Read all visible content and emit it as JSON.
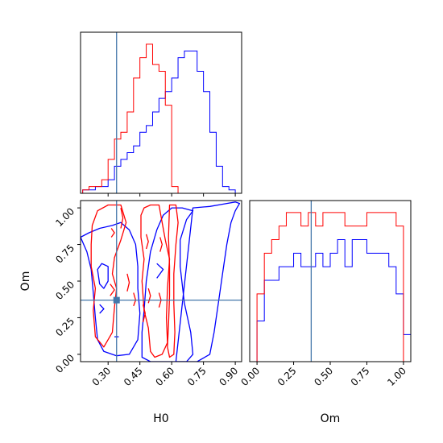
{
  "chart_data": {
    "type": "corner",
    "colors": {
      "series_a": "#ff0000",
      "series_b": "#0000ff",
      "truth": "#4477aa",
      "axes": "#000000"
    },
    "truth": {
      "H0": 0.34,
      "Om": 0.37
    },
    "x_axis_label": "H0",
    "y_axis_label": "Om",
    "om_axis_label": "Om",
    "h0_ticks": [
      {
        "v": 0.3,
        "label": "0.30"
      },
      {
        "v": 0.45,
        "label": "0.45"
      },
      {
        "v": 0.6,
        "label": "0.60"
      },
      {
        "v": 0.75,
        "label": "0.75"
      },
      {
        "v": 0.9,
        "label": "0.90"
      }
    ],
    "om_ticks": [
      {
        "v": 0.0,
        "label": "0.00"
      },
      {
        "v": 0.25,
        "label": "0.25"
      },
      {
        "v": 0.5,
        "label": "0.50"
      },
      {
        "v": 0.75,
        "label": "0.75"
      },
      {
        "v": 1.0,
        "label": "1.00"
      }
    ],
    "h0_range": [
      0.17,
      0.93
    ],
    "om_range": [
      -0.05,
      1.05
    ],
    "h0_histogram": {
      "bin_start": 0.18,
      "bin_width": 0.03,
      "red": [
        0.5,
        1,
        1,
        2,
        5,
        8,
        9,
        12,
        17,
        20,
        22,
        19,
        18,
        13,
        1,
        0,
        0,
        0,
        0,
        0,
        0,
        0,
        0,
        0,
        0
      ],
      "blue": [
        0.5,
        0.5,
        1,
        1,
        2,
        4,
        5,
        6,
        7,
        9,
        10,
        12,
        14,
        15,
        17,
        20,
        21,
        21,
        18,
        15,
        9,
        4,
        1,
        0.5,
        0
      ]
    },
    "om_histogram": {
      "bin_start": -0.05,
      "bin_width": 0.05,
      "red": [
        0,
        5,
        8,
        9,
        10,
        11,
        11,
        10,
        11,
        10,
        11,
        11,
        11,
        10,
        10,
        10,
        11,
        11,
        11,
        11,
        10,
        0
      ],
      "blue": [
        0,
        3,
        6,
        6,
        7,
        7,
        8,
        7,
        7,
        8,
        7,
        8,
        9,
        7,
        9,
        9,
        8,
        8,
        8,
        7,
        5,
        2
      ]
    },
    "contours": {
      "red": [
        [
          [
            0.225,
            0.88
          ],
          [
            0.25,
            0.98
          ],
          [
            0.3,
            1.02
          ],
          [
            0.36,
            1.02
          ],
          [
            0.385,
            0.9
          ],
          [
            0.36,
            0.78
          ],
          [
            0.33,
            0.66
          ],
          [
            0.32,
            0.55
          ],
          [
            0.34,
            0.45
          ],
          [
            0.33,
            0.32
          ],
          [
            0.32,
            0.15
          ],
          [
            0.28,
            0.05
          ],
          [
            0.24,
            0.12
          ],
          [
            0.23,
            0.3
          ],
          [
            0.24,
            0.45
          ],
          [
            0.22,
            0.6
          ],
          [
            0.22,
            0.75
          ]
        ],
        [
          [
            0.315,
            0.86
          ],
          [
            0.33,
            0.83
          ],
          [
            0.315,
            0.8
          ]
        ],
        [
          [
            0.31,
            0.48
          ],
          [
            0.33,
            0.44
          ],
          [
            0.31,
            0.4
          ]
        ],
        [
          [
            0.455,
            0.95
          ],
          [
            0.47,
            1.0
          ],
          [
            0.5,
            1.02
          ],
          [
            0.54,
            1.02
          ],
          [
            0.555,
            0.9
          ],
          [
            0.57,
            0.78
          ],
          [
            0.59,
            0.65
          ],
          [
            0.58,
            0.45
          ],
          [
            0.575,
            0.25
          ],
          [
            0.58,
            0.08
          ],
          [
            0.555,
            0.0
          ],
          [
            0.52,
            -0.02
          ],
          [
            0.5,
            0.02
          ],
          [
            0.49,
            0.18
          ],
          [
            0.47,
            0.3
          ],
          [
            0.46,
            0.5
          ],
          [
            0.47,
            0.65
          ],
          [
            0.455,
            0.8
          ]
        ],
        [
          [
            0.59,
            1.02
          ],
          [
            0.62,
            1.02
          ],
          [
            0.63,
            0.9
          ],
          [
            0.62,
            0.75
          ],
          [
            0.61,
            0.55
          ],
          [
            0.61,
            0.35
          ],
          [
            0.615,
            0.15
          ],
          [
            0.61,
            0.0
          ],
          [
            0.59,
            -0.02
          ],
          [
            0.58,
            0.05
          ],
          [
            0.585,
            0.2
          ],
          [
            0.59,
            0.4
          ],
          [
            0.59,
            0.6
          ],
          [
            0.585,
            0.8
          ]
        ],
        [
          [
            0.39,
            0.55
          ],
          [
            0.4,
            0.49
          ],
          [
            0.39,
            0.43
          ]
        ],
        [
          [
            0.42,
            0.42
          ],
          [
            0.43,
            0.37
          ],
          [
            0.42,
            0.33
          ]
        ],
        [
          [
            0.465,
            0.34
          ],
          [
            0.475,
            0.28
          ],
          [
            0.465,
            0.22
          ]
        ],
        [
          [
            0.49,
            0.45
          ],
          [
            0.5,
            0.4
          ],
          [
            0.49,
            0.35
          ]
        ],
        [
          [
            0.54,
            0.42
          ],
          [
            0.55,
            0.37
          ],
          [
            0.54,
            0.32
          ]
        ],
        [
          [
            0.48,
            0.82
          ],
          [
            0.49,
            0.77
          ],
          [
            0.48,
            0.72
          ]
        ],
        [
          [
            0.545,
            0.8
          ],
          [
            0.555,
            0.75
          ],
          [
            0.545,
            0.7
          ]
        ],
        [
          [
            0.36,
            1.0
          ],
          [
            0.37,
            0.93
          ],
          [
            0.36,
            0.86
          ]
        ]
      ],
      "blue": [
        [
          [
            0.17,
            0.8
          ],
          [
            0.21,
            0.83
          ],
          [
            0.26,
            0.86
          ],
          [
            0.32,
            0.88
          ],
          [
            0.36,
            0.9
          ],
          [
            0.4,
            0.85
          ],
          [
            0.43,
            0.75
          ],
          [
            0.44,
            0.6
          ],
          [
            0.44,
            0.45
          ],
          [
            0.45,
            0.28
          ],
          [
            0.44,
            0.1
          ],
          [
            0.4,
            0.0
          ],
          [
            0.34,
            -0.01
          ],
          [
            0.28,
            0.02
          ],
          [
            0.25,
            0.1
          ],
          [
            0.24,
            0.25
          ],
          [
            0.23,
            0.42
          ],
          [
            0.22,
            0.58
          ],
          [
            0.2,
            0.7
          ]
        ],
        [
          [
            0.25,
            0.58
          ],
          [
            0.27,
            0.62
          ],
          [
            0.3,
            0.6
          ],
          [
            0.3,
            0.5
          ],
          [
            0.28,
            0.45
          ],
          [
            0.26,
            0.48
          ]
        ],
        [
          [
            0.26,
            0.34
          ],
          [
            0.28,
            0.31
          ],
          [
            0.26,
            0.28
          ]
        ],
        [
          [
            0.33,
            0.12
          ],
          [
            0.35,
            0.12
          ]
        ],
        [
          [
            0.46,
            -0.02
          ],
          [
            0.5,
            -0.05
          ],
          [
            0.6,
            -0.05
          ],
          [
            0.67,
            -0.05
          ],
          [
            0.7,
            0.0
          ],
          [
            0.69,
            0.15
          ],
          [
            0.66,
            0.35
          ],
          [
            0.64,
            0.6
          ],
          [
            0.64,
            0.78
          ],
          [
            0.67,
            0.92
          ],
          [
            0.7,
            0.98
          ],
          [
            0.65,
            1.0
          ],
          [
            0.6,
            1.0
          ],
          [
            0.56,
            0.95
          ],
          [
            0.53,
            0.85
          ],
          [
            0.5,
            0.7
          ],
          [
            0.48,
            0.5
          ],
          [
            0.47,
            0.3
          ],
          [
            0.46,
            0.15
          ]
        ],
        [
          [
            0.62,
            -0.05
          ],
          [
            0.72,
            -0.05
          ],
          [
            0.78,
            0.0
          ],
          [
            0.8,
            0.15
          ],
          [
            0.82,
            0.35
          ],
          [
            0.84,
            0.55
          ],
          [
            0.86,
            0.75
          ],
          [
            0.88,
            0.9
          ],
          [
            0.9,
            0.98
          ],
          [
            0.92,
            1.03
          ],
          [
            0.9,
            1.04
          ],
          [
            0.86,
            1.03
          ],
          [
            0.78,
            1.01
          ],
          [
            0.7,
            1.0
          ]
        ],
        [
          [
            0.53,
            0.62
          ],
          [
            0.56,
            0.58
          ],
          [
            0.53,
            0.52
          ]
        ]
      ]
    }
  }
}
